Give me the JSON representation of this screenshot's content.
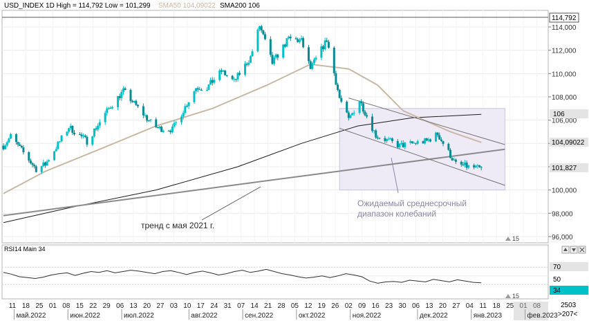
{
  "header": {
    "main_title": "USD_INDEX 1D High = 114,792 Low = 101,299",
    "sma50_label": "SMA50 104,09022",
    "sma200_label": "SMA200 106"
  },
  "annotations": {
    "trend_label": "тренд с мая 2021 г.",
    "range_label_line1": "Ожидаемый среднесрочный",
    "range_label_line2": "диапазон колебаний",
    "bars_count_main": "15",
    "bars_count_rsi": "15"
  },
  "price_axis": {
    "ticks": [
      "114,000",
      "112,000",
      "110,000",
      "108,000",
      "106,000",
      "104,000",
      "102,000",
      "100,000",
      "98,000",
      "96,000"
    ],
    "high_label": "114,792",
    "sma200_label": "106",
    "sma50_label": "104,09022",
    "last_label": "101,827"
  },
  "rsi_panel": {
    "title": "RSI14 Main 34",
    "level_70": "70",
    "level_50": "50",
    "level_30": "30",
    "current": "34"
  },
  "time_axis": {
    "days": [
      "11",
      "18",
      "25",
      "01",
      "08",
      "15",
      "22",
      "29",
      "06",
      "13",
      "20",
      "27",
      "03",
      "10",
      "17",
      "24",
      "31",
      "07",
      "14",
      "21",
      "28",
      "05",
      "12",
      "19",
      "26",
      "02",
      "09",
      "16",
      "23",
      "30",
      "06",
      "13",
      "20",
      "27",
      "04",
      "11",
      "18",
      "25",
      "01",
      "08"
    ],
    "months": [
      {
        "label": "май.2022",
        "day_index": 1
      },
      {
        "label": "июн.2022",
        "day_index": 5
      },
      {
        "label": "июл.2022",
        "day_index": 9
      },
      {
        "label": "авг.2022",
        "day_index": 14
      },
      {
        "label": "сен.2022",
        "day_index": 18
      },
      {
        "label": "окт.2022",
        "day_index": 22
      },
      {
        "label": "ноя.2022",
        "day_index": 26
      },
      {
        "label": "дек.2022",
        "day_index": 31
      },
      {
        "label": "янв.2023",
        "day_index": 35
      },
      {
        "label": "фев.2023",
        "day_index": 39
      }
    ],
    "right_top": "2503",
    "right_bottom": ">207<"
  },
  "colors": {
    "bull": "#00c0c8",
    "bear": "#0a8a92",
    "sma50": "#c8b8a4",
    "sma200": "#1c1c1c",
    "trend": "#8a8a8a",
    "channel": "#707070",
    "range_fill": "#eeebf6",
    "range_stroke": "#c8c2dc",
    "rsi_line": "#303030",
    "rsi_current": "#00c0c8",
    "annotation": "#8a86a8"
  },
  "chart_data": [
    {
      "type": "candlestick",
      "title": "USD_INDEX 1D",
      "high": 114.792,
      "low": 101.299,
      "ylim": [
        95.4,
        116.2
      ],
      "x_start": "2022-05-09",
      "x_end": "2023-01-27",
      "series": [
        {
          "name": "SMA50",
          "last": 104.09022
        },
        {
          "name": "SMA200",
          "last": 106
        }
      ],
      "close_path": [
        {
          "date": "2022-05-09",
          "close": 103.8
        },
        {
          "date": "2022-05-13",
          "close": 104.6
        },
        {
          "date": "2022-05-20",
          "close": 103.2
        },
        {
          "date": "2022-05-27",
          "close": 101.8
        },
        {
          "date": "2022-06-01",
          "close": 102.2
        },
        {
          "date": "2022-06-14",
          "close": 105.4
        },
        {
          "date": "2022-06-24",
          "close": 104.2
        },
        {
          "date": "2022-07-06",
          "close": 107.0
        },
        {
          "date": "2022-07-14",
          "close": 108.5
        },
        {
          "date": "2022-07-29",
          "close": 105.8
        },
        {
          "date": "2022-08-02",
          "close": 105.3
        },
        {
          "date": "2022-08-10",
          "close": 105.2
        },
        {
          "date": "2022-08-23",
          "close": 108.8
        },
        {
          "date": "2022-08-29",
          "close": 108.8
        },
        {
          "date": "2022-09-06",
          "close": 110.2
        },
        {
          "date": "2022-09-13",
          "close": 109.3
        },
        {
          "date": "2022-09-22",
          "close": 111.4
        },
        {
          "date": "2022-09-27",
          "close": 114.1
        },
        {
          "date": "2022-10-04",
          "close": 110.9
        },
        {
          "date": "2022-10-13",
          "close": 113.0
        },
        {
          "date": "2022-10-20",
          "close": 112.8
        },
        {
          "date": "2022-10-25",
          "close": 110.4
        },
        {
          "date": "2022-11-03",
          "close": 112.9
        },
        {
          "date": "2022-11-10",
          "close": 107.9
        },
        {
          "date": "2022-11-15",
          "close": 106.0
        },
        {
          "date": "2022-11-21",
          "close": 107.7
        },
        {
          "date": "2022-11-30",
          "close": 104.7
        },
        {
          "date": "2022-12-13",
          "close": 103.8
        },
        {
          "date": "2022-12-28",
          "close": 104.2
        },
        {
          "date": "2023-01-03",
          "close": 104.8
        },
        {
          "date": "2023-01-13",
          "close": 102.2
        },
        {
          "date": "2023-01-27",
          "close": 101.8
        }
      ],
      "sma50_path": [
        {
          "date": "2022-05-09",
          "value": 99.7
        },
        {
          "date": "2022-06-01",
          "value": 101.6
        },
        {
          "date": "2022-07-01",
          "value": 103.5
        },
        {
          "date": "2022-08-01",
          "value": 105.5
        },
        {
          "date": "2022-09-01",
          "value": 107.0
        },
        {
          "date": "2022-10-01",
          "value": 109.0
        },
        {
          "date": "2022-10-25",
          "value": 110.8
        },
        {
          "date": "2022-11-15",
          "value": 110.4
        },
        {
          "date": "2022-12-01",
          "value": 109.0
        },
        {
          "date": "2022-12-15",
          "value": 106.8
        },
        {
          "date": "2023-01-10",
          "value": 105.0
        },
        {
          "date": "2023-01-27",
          "value": 104.09
        }
      ],
      "sma200_path": [
        {
          "date": "2022-05-09",
          "value": 97.2
        },
        {
          "date": "2022-06-15",
          "value": 98.5
        },
        {
          "date": "2022-08-01",
          "value": 100.0
        },
        {
          "date": "2022-09-15",
          "value": 102.0
        },
        {
          "date": "2022-10-20",
          "value": 104.0
        },
        {
          "date": "2022-11-20",
          "value": 105.5
        },
        {
          "date": "2022-12-20",
          "value": 106.2
        },
        {
          "date": "2023-01-27",
          "value": 106.5
        }
      ],
      "trend_line": {
        "from": {
          "date": "2022-05-09",
          "value": 97.8
        },
        "to": {
          "date": "2023-02-09",
          "value": 103.5
        }
      },
      "channel_upper": {
        "from": {
          "date": "2022-11-15",
          "value": 107.9
        },
        "to": {
          "date": "2023-02-09",
          "value": 103.9
        }
      },
      "channel_lower": {
        "from": {
          "date": "2022-11-10",
          "value": 105.3
        },
        "to": {
          "date": "2023-02-09",
          "value": 100.4
        }
      },
      "range_box": {
        "from": "2022-11-10",
        "to": "2023-02-09",
        "top": 107.0,
        "bottom": 100.0
      }
    },
    {
      "type": "line",
      "title": "RSI14 Main 34",
      "ylim": [
        0,
        100
      ],
      "levels": [
        70,
        50,
        30
      ],
      "series": [
        {
          "name": "RSI14",
          "last": 34,
          "values": [
            58,
            54,
            48,
            46,
            44,
            47,
            52,
            55,
            57,
            51,
            56,
            60,
            58,
            62,
            57,
            60,
            63,
            61,
            58,
            55,
            60,
            62,
            58,
            53,
            58,
            61,
            57,
            52,
            55,
            60,
            63,
            58,
            61,
            65,
            60,
            55,
            52,
            48,
            45,
            47,
            50,
            46,
            50,
            55,
            52,
            48,
            38,
            33,
            36,
            37,
            35,
            40,
            38,
            36,
            42,
            39,
            36,
            41,
            38,
            35,
            34
          ]
        }
      ]
    }
  ]
}
